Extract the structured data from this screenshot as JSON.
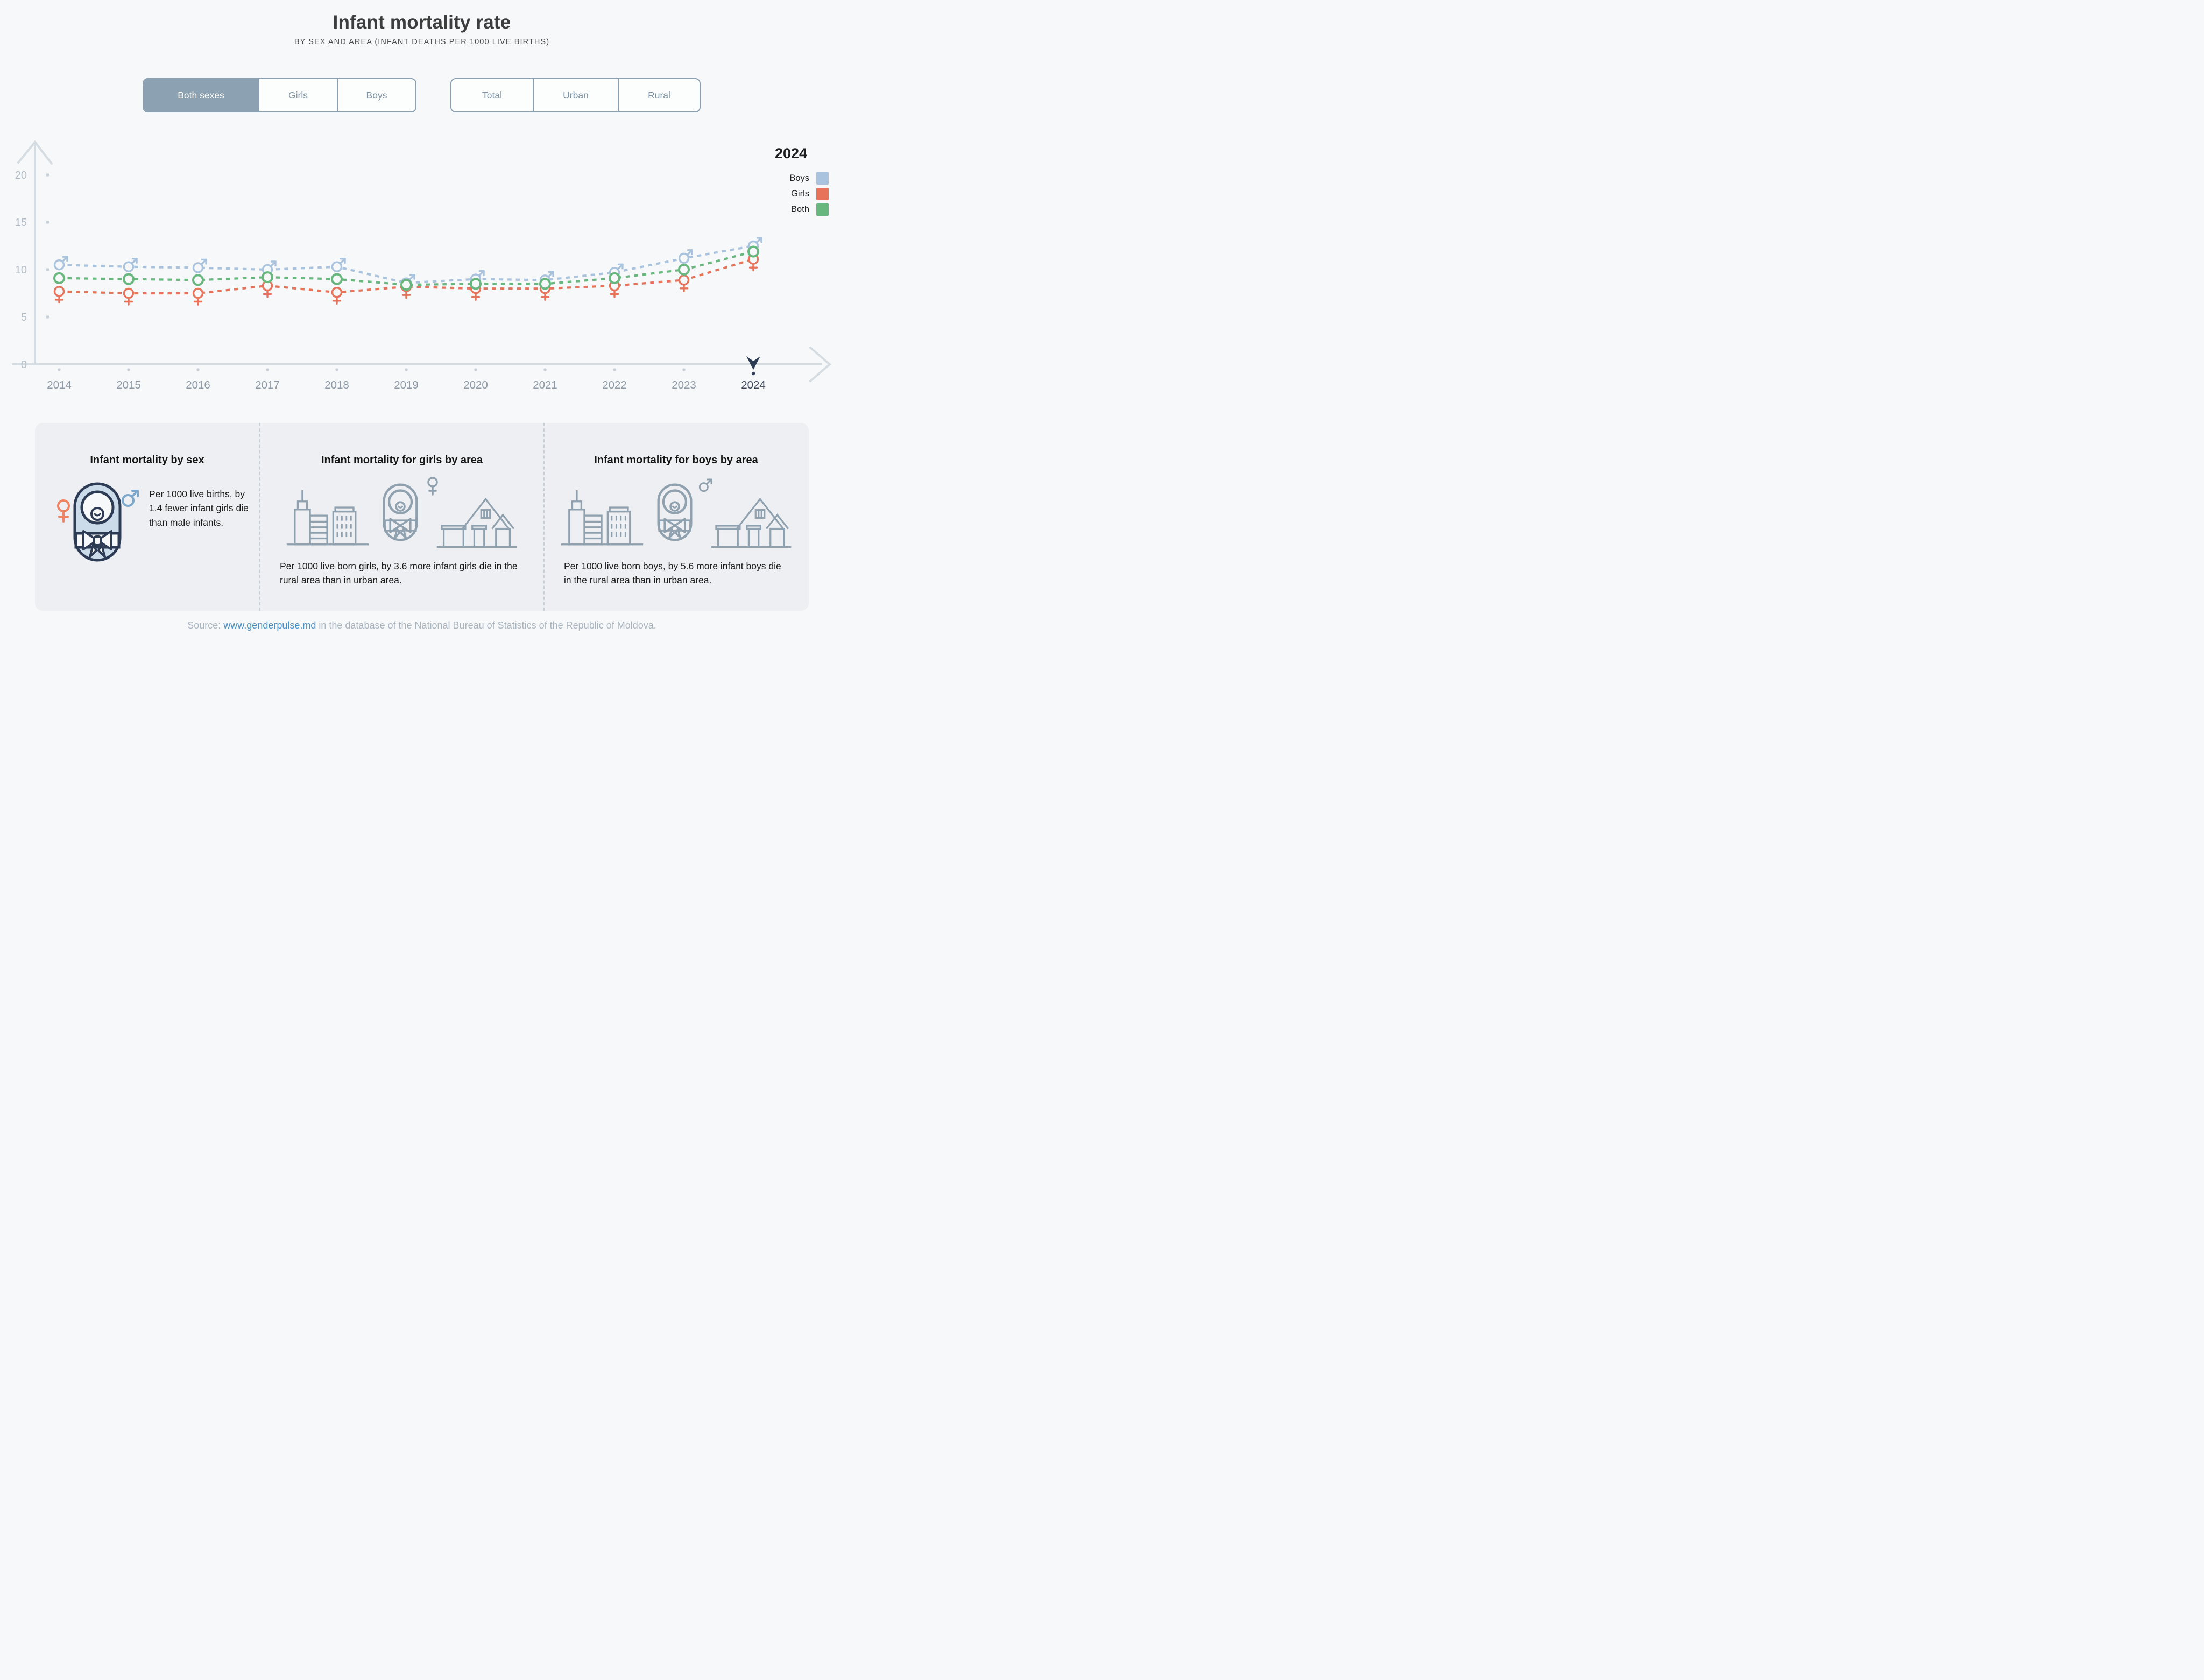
{
  "header": {
    "title": "Infant mortality rate",
    "subtitle": "BY SEX AND AREA (INFANT DEATHS PER 1000 LIVE BIRTHS)"
  },
  "controls": {
    "sex": [
      {
        "label": "Both sexes",
        "selected": true
      },
      {
        "label": "Girls",
        "selected": false
      },
      {
        "label": "Boys",
        "selected": false
      }
    ],
    "area": [
      {
        "label": "Total",
        "selected": false
      },
      {
        "label": "Urban",
        "selected": false
      },
      {
        "label": "Rural",
        "selected": false
      }
    ]
  },
  "legend": {
    "year": "2024",
    "items": [
      {
        "label": "Boys",
        "color": "#a9c3de"
      },
      {
        "label": "Girls",
        "color": "#e8735b"
      },
      {
        "label": "Both",
        "color": "#68b77e"
      }
    ]
  },
  "chart_data": {
    "type": "line",
    "x": [
      2014,
      2015,
      2016,
      2017,
      2018,
      2019,
      2020,
      2021,
      2022,
      2023,
      2024
    ],
    "series": [
      {
        "name": "Boys",
        "color": "#a9c3de",
        "marker": "male",
        "values": [
          10.5,
          10.3,
          10.2,
          10.0,
          10.3,
          8.6,
          9.0,
          8.9,
          9.7,
          11.2,
          12.5
        ]
      },
      {
        "name": "Girls",
        "color": "#e8735b",
        "marker": "female",
        "values": [
          7.7,
          7.5,
          7.5,
          8.3,
          7.6,
          8.2,
          8.0,
          8.0,
          8.3,
          8.9,
          11.1
        ]
      },
      {
        "name": "Both",
        "color": "#68b77e",
        "marker": "circle",
        "values": [
          9.1,
          9.0,
          8.9,
          9.2,
          9.0,
          8.4,
          8.5,
          8.5,
          9.1,
          10.0,
          11.9
        ]
      }
    ],
    "title": "Infant mortality rate",
    "xlabel": "",
    "ylabel": "",
    "ylim": [
      0,
      20
    ],
    "yticks": [
      0,
      5,
      10,
      15,
      20
    ],
    "grid": false,
    "legend_position": "right",
    "highlight_year": 2024,
    "line_style": "dashed"
  },
  "cards": [
    {
      "title": "Infant mortality by sex",
      "text": "Per 1000 live births, by 1.4 fewer infant girls die than male infants."
    },
    {
      "title": "Infant mortality for girls by area",
      "text": "Per 1000 live born girls, by 3.6 more infant girls die in the rural area than in urban area."
    },
    {
      "title": "Infant mortality for boys by area",
      "text": "Per 1000 live born boys, by 5.6 more infant boys die in the rural area than in urban area."
    }
  ],
  "source": {
    "prefix": "Source: ",
    "link": "www.genderpulse.md",
    "suffix": " in the database of the National Bureau of Statistics of the Republic of Moldova."
  },
  "icons": [
    "female-symbol-icon",
    "male-symbol-icon",
    "swaddled-baby-icon",
    "city-buildings-icon",
    "rural-houses-icon",
    "year-pointer-icon"
  ],
  "colors": {
    "page_bg": "#f7f8f9",
    "panel_bg": "#edeff2",
    "axis": "#d5dce2",
    "axis_label": "#b2bcc6",
    "year_label": "#8d99a6",
    "highlight_navy": "#2e3b55",
    "button_border": "#8ba0b2",
    "button_selected_bg": "#8ca1b2",
    "link_blue": "#4a90c8",
    "boys_blue": "#a9c3de",
    "girls_orange": "#e8735b",
    "both_green": "#68b77e"
  }
}
